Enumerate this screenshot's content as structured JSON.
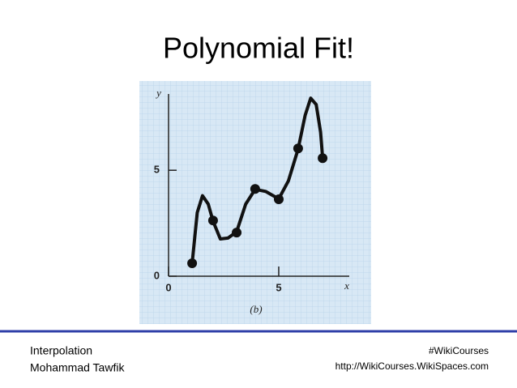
{
  "title": "Polynomial Fit!",
  "footer": {
    "left": [
      "Interpolation",
      "Mohammad Tawfik"
    ],
    "right": [
      "#WikiCourses",
      "http://WikiCourses.WikiSpaces.com"
    ]
  },
  "chart_data": {
    "type": "scatter",
    "caption": "(b)",
    "xlabel": "x",
    "ylabel": "y",
    "xlim": [
      0,
      8.2
    ],
    "ylim": [
      0,
      8.6
    ],
    "xticks": [
      0,
      5
    ],
    "yticks": [
      0,
      5
    ],
    "grid": true,
    "series": [
      {
        "color": "#111111",
        "x": [
          1.07,
          2.02,
          3.09,
          3.93,
          5.0,
          5.88,
          6.99
        ],
        "values": [
          0.61,
          2.63,
          2.06,
          4.12,
          3.63,
          6.03,
          5.57
        ]
      }
    ],
    "curve": {
      "type": "line",
      "color": "#111111",
      "x": [
        1.07,
        1.3,
        1.54,
        1.8,
        2.02,
        2.35,
        2.7,
        3.09,
        3.5,
        3.93,
        4.4,
        5.0,
        5.44,
        5.88,
        6.2,
        6.45,
        6.7,
        6.9,
        6.99
      ],
      "values": [
        0.6,
        3.0,
        3.8,
        3.4,
        2.6,
        1.76,
        1.8,
        2.1,
        3.4,
        4.1,
        4.0,
        3.65,
        4.5,
        6.0,
        7.6,
        8.4,
        8.1,
        6.8,
        5.6
      ]
    }
  }
}
